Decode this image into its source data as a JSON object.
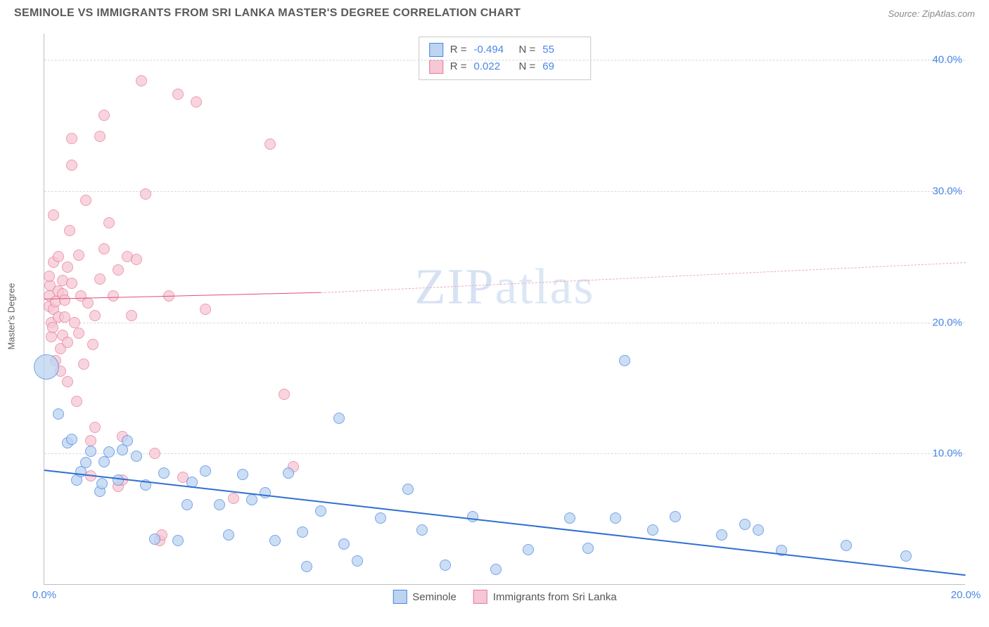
{
  "header": {
    "title": "SEMINOLE VS IMMIGRANTS FROM SRI LANKA MASTER'S DEGREE CORRELATION CHART",
    "source": "Source: ZipAtlas.com"
  },
  "watermark": "ZIPatlas",
  "y_axis": {
    "label": "Master's Degree"
  },
  "axes": {
    "xlim": [
      0,
      20
    ],
    "ylim": [
      0,
      42
    ],
    "x_ticks": [
      {
        "v": 0,
        "label": "0.0%"
      },
      {
        "v": 20,
        "label": "20.0%"
      }
    ],
    "y_ticks": [
      {
        "v": 10,
        "label": "10.0%"
      },
      {
        "v": 20,
        "label": "20.0%"
      },
      {
        "v": 30,
        "label": "30.0%"
      },
      {
        "v": 40,
        "label": "40.0%"
      }
    ],
    "grid_color": "#d9d9d9",
    "axis_color": "#bfbfbf",
    "tick_color": "#4a86e8"
  },
  "stats_box": {
    "rows": [
      {
        "swatch_fill": "#bcd4f0",
        "swatch_stroke": "#4a86e8",
        "r_label": "R =",
        "r": "-0.494",
        "n_label": "N =",
        "n": "55"
      },
      {
        "swatch_fill": "#f6c7d4",
        "swatch_stroke": "#e77b9a",
        "r_label": "R =",
        "r": "0.022",
        "n_label": "N =",
        "n": "69"
      }
    ]
  },
  "bottom_legend": [
    {
      "swatch_fill": "#bcd4f0",
      "swatch_stroke": "#4a86e8",
      "label": "Seminole"
    },
    {
      "swatch_fill": "#f6c7d4",
      "swatch_stroke": "#e77b9a",
      "label": "Immigrants from Sri Lanka"
    }
  ],
  "series": {
    "seminole": {
      "color_fill": "#bcd4f0",
      "color_stroke": "#4a86e8",
      "opacity": 0.75,
      "r": 8,
      "points": [
        [
          0.05,
          16.6,
          18
        ],
        [
          0.3,
          13.0
        ],
        [
          0.5,
          10.8
        ],
        [
          0.6,
          11.1
        ],
        [
          0.7,
          8.0
        ],
        [
          0.8,
          8.6
        ],
        [
          0.9,
          9.3
        ],
        [
          1.0,
          10.2
        ],
        [
          1.2,
          7.1
        ],
        [
          1.25,
          7.7
        ],
        [
          1.3,
          9.4
        ],
        [
          1.4,
          10.1
        ],
        [
          1.6,
          8.0
        ],
        [
          1.7,
          10.3
        ],
        [
          1.8,
          11.0
        ],
        [
          2.0,
          9.8
        ],
        [
          2.2,
          7.6
        ],
        [
          2.4,
          3.5
        ],
        [
          2.6,
          8.5
        ],
        [
          2.9,
          3.4
        ],
        [
          3.1,
          6.1
        ],
        [
          3.2,
          7.8
        ],
        [
          3.5,
          8.7
        ],
        [
          3.8,
          6.1
        ],
        [
          4.0,
          3.8
        ],
        [
          4.3,
          8.4
        ],
        [
          4.5,
          6.5
        ],
        [
          4.8,
          7.0
        ],
        [
          5.0,
          3.4
        ],
        [
          5.3,
          8.5
        ],
        [
          5.6,
          4.0
        ],
        [
          5.7,
          1.4
        ],
        [
          6.0,
          5.6
        ],
        [
          6.4,
          12.7
        ],
        [
          6.5,
          3.1
        ],
        [
          6.8,
          1.8
        ],
        [
          7.3,
          5.1
        ],
        [
          7.9,
          7.3
        ],
        [
          8.2,
          4.2
        ],
        [
          8.7,
          1.5
        ],
        [
          9.3,
          5.2
        ],
        [
          9.8,
          1.2
        ],
        [
          10.5,
          2.7
        ],
        [
          11.4,
          5.1
        ],
        [
          11.8,
          2.8
        ],
        [
          12.4,
          5.1
        ],
        [
          12.6,
          17.1
        ],
        [
          13.2,
          4.2
        ],
        [
          13.7,
          5.2
        ],
        [
          14.7,
          3.8
        ],
        [
          15.2,
          4.6
        ],
        [
          15.5,
          4.2
        ],
        [
          16.0,
          2.6
        ],
        [
          17.4,
          3.0
        ],
        [
          18.7,
          2.2
        ]
      ],
      "trend": {
        "x1": 0,
        "y1": 8.8,
        "x2": 20,
        "y2": 0.8,
        "color": "#2e6fd1",
        "width": 2.2,
        "dash": false
      }
    },
    "srilanka": {
      "color_fill": "#f6c7d4",
      "color_stroke": "#e77b9a",
      "opacity": 0.75,
      "r": 8,
      "points": [
        [
          0.1,
          21.2
        ],
        [
          0.1,
          22.0
        ],
        [
          0.12,
          22.8
        ],
        [
          0.1,
          23.5
        ],
        [
          0.15,
          20.0
        ],
        [
          0.15,
          18.9
        ],
        [
          0.18,
          19.6
        ],
        [
          0.2,
          24.6
        ],
        [
          0.2,
          21.0
        ],
        [
          0.2,
          28.2
        ],
        [
          0.25,
          21.6
        ],
        [
          0.25,
          17.1
        ],
        [
          0.3,
          22.4
        ],
        [
          0.3,
          25.0
        ],
        [
          0.3,
          20.4
        ],
        [
          0.35,
          16.3
        ],
        [
          0.35,
          18.0
        ],
        [
          0.4,
          22.2
        ],
        [
          0.4,
          23.2
        ],
        [
          0.4,
          19.0
        ],
        [
          0.45,
          21.7
        ],
        [
          0.45,
          20.4
        ],
        [
          0.5,
          24.2
        ],
        [
          0.5,
          18.5
        ],
        [
          0.5,
          15.5
        ],
        [
          0.55,
          27.0
        ],
        [
          0.6,
          23.0
        ],
        [
          0.6,
          34.0
        ],
        [
          0.6,
          32.0
        ],
        [
          0.65,
          20.0
        ],
        [
          0.7,
          14.0
        ],
        [
          0.75,
          25.1
        ],
        [
          0.75,
          19.2
        ],
        [
          0.8,
          22.0
        ],
        [
          0.85,
          16.8
        ],
        [
          0.9,
          29.3
        ],
        [
          0.95,
          21.5
        ],
        [
          1.0,
          8.3
        ],
        [
          1.0,
          11.0
        ],
        [
          1.05,
          18.3
        ],
        [
          1.1,
          20.5
        ],
        [
          1.1,
          12.0
        ],
        [
          1.2,
          23.3
        ],
        [
          1.2,
          34.2
        ],
        [
          1.3,
          25.6
        ],
        [
          1.3,
          35.8
        ],
        [
          1.4,
          27.6
        ],
        [
          1.5,
          22.0
        ],
        [
          1.6,
          7.5
        ],
        [
          1.6,
          24.0
        ],
        [
          1.7,
          11.3
        ],
        [
          1.7,
          8.0
        ],
        [
          1.8,
          25.0
        ],
        [
          1.9,
          20.5
        ],
        [
          2.0,
          24.8
        ],
        [
          2.1,
          38.4
        ],
        [
          2.2,
          29.8
        ],
        [
          2.4,
          10.0
        ],
        [
          2.5,
          3.4
        ],
        [
          2.55,
          3.8
        ],
        [
          2.7,
          22.0
        ],
        [
          2.9,
          37.4
        ],
        [
          3.0,
          8.2
        ],
        [
          3.3,
          36.8
        ],
        [
          3.5,
          21.0
        ],
        [
          4.1,
          6.6
        ],
        [
          4.9,
          33.6
        ],
        [
          5.2,
          14.5
        ],
        [
          5.4,
          9.0
        ]
      ],
      "trend_solid": {
        "x1": 0,
        "y1": 21.8,
        "x2": 6.0,
        "y2": 22.3,
        "color": "#e04e78",
        "width": 1.8
      },
      "trend_dash": {
        "x1": 6.0,
        "y1": 22.3,
        "x2": 20,
        "y2": 24.6,
        "color": "#f1a8bd",
        "width": 1.4
      }
    }
  }
}
